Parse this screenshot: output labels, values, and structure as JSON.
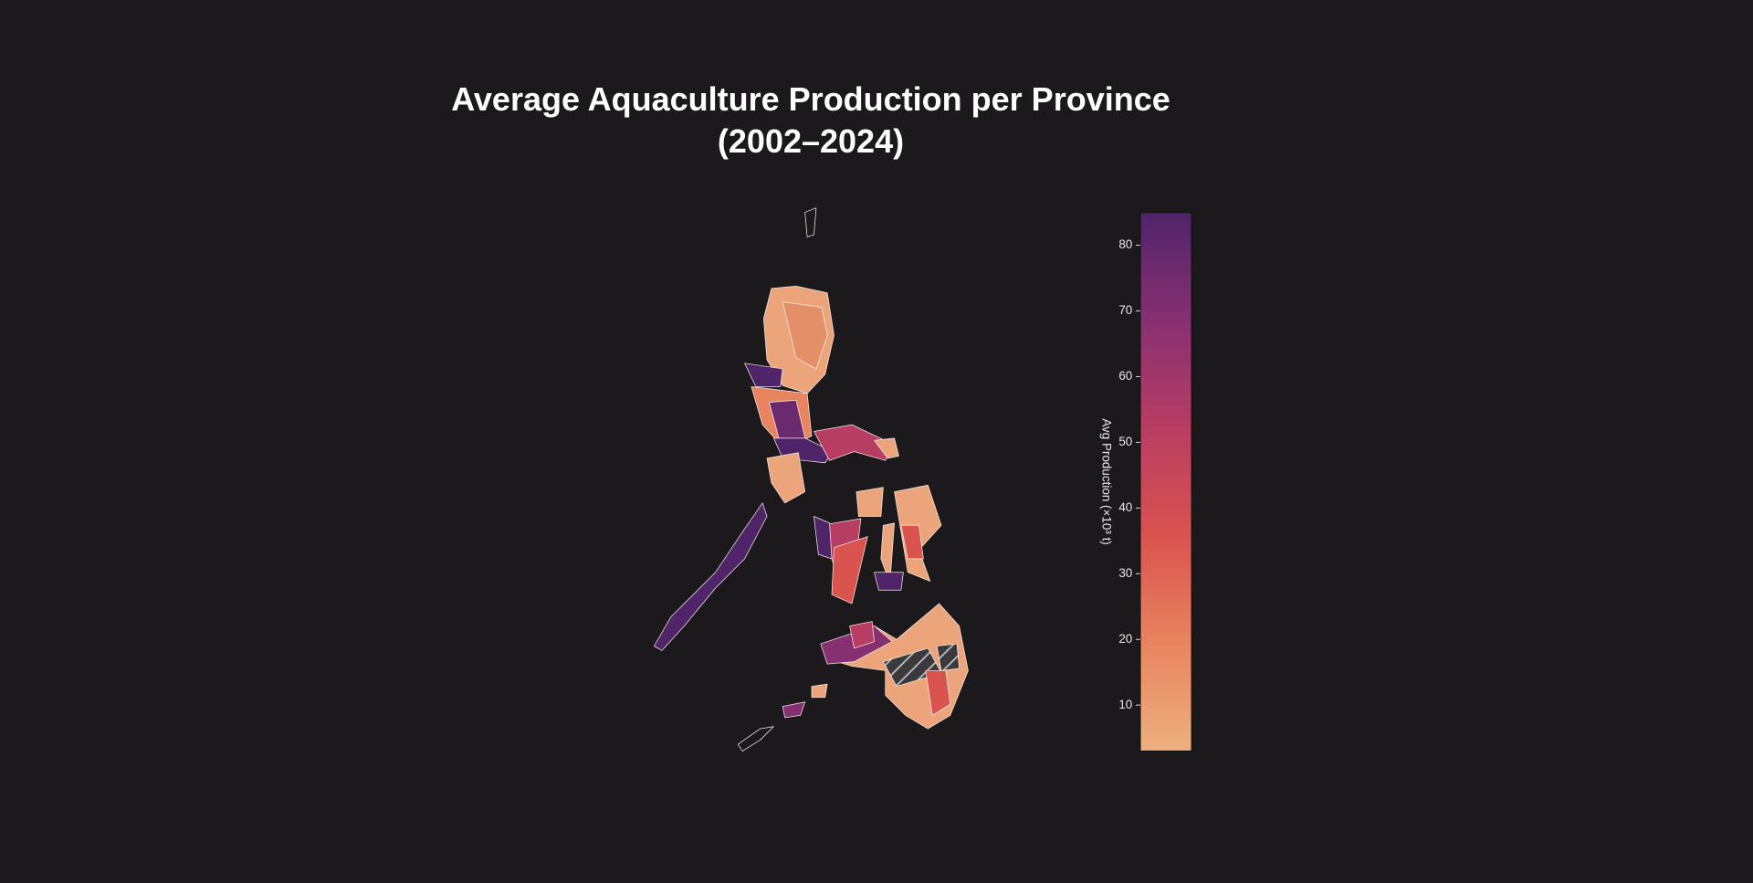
{
  "chart_data": {
    "type": "choropleth",
    "title": "Average Aquaculture Production per Province (2002–2024)",
    "colorbar": {
      "label": "Avg Production (×10³ t)",
      "ylim": [
        3,
        85
      ],
      "yticks": [
        10,
        20,
        30,
        40,
        50,
        60,
        70,
        80
      ],
      "colors": [
        "#edb07f",
        "#e8845f",
        "#d9534f",
        "#b83d63",
        "#873071",
        "#4f2469"
      ]
    }
  }
}
